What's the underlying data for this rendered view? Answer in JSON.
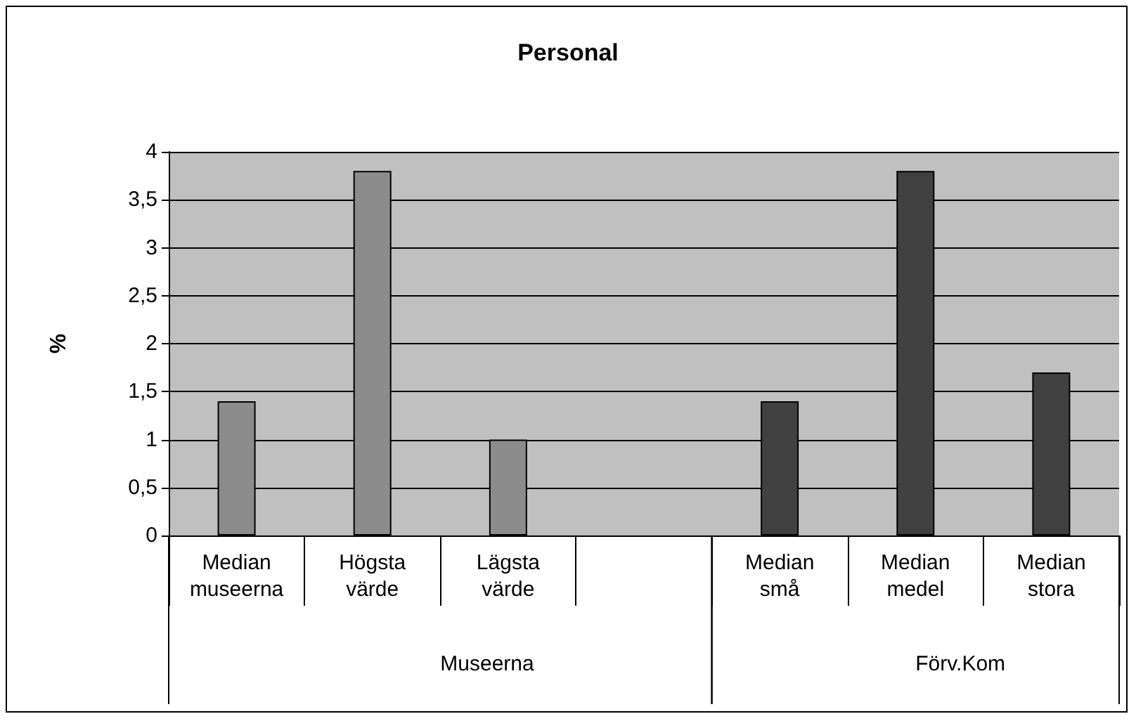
{
  "chart_data": {
    "type": "bar",
    "title": "Personal",
    "ylabel": "%",
    "categories": [
      "Median\nmuseerna",
      "Högsta\nvärde",
      "Lägsta\nvärde",
      null,
      "Median\nsmå",
      "Median\nmedel",
      "Median\nstora"
    ],
    "values": [
      1.4,
      3.8,
      1.0,
      null,
      1.4,
      3.8,
      1.7
    ],
    "colors": [
      "#8c8c8c",
      "#8c8c8c",
      "#8c8c8c",
      "#404040",
      "#404040",
      "#404040",
      "#404040"
    ],
    "ylim": [
      0,
      4
    ],
    "yticks": [
      0,
      {
        "value": 0.5,
        "label": "0,5"
      },
      1,
      {
        "value": 1.5,
        "label": "1,5"
      },
      2,
      {
        "value": 2.5,
        "label": "2,5"
      },
      3,
      {
        "value": 3.5,
        "label": "3,5"
      },
      4
    ],
    "grid": "y",
    "annotations": [
      "Museerna",
      "Förv.Kom"
    ]
  }
}
